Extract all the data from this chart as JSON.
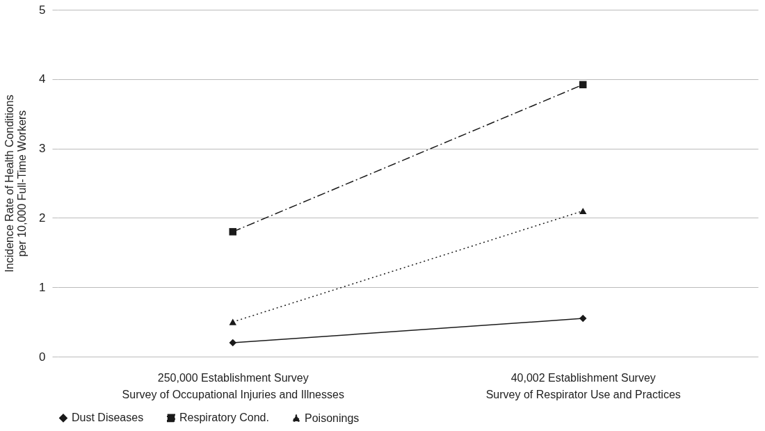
{
  "chart_data": {
    "type": "line",
    "ylabel": "Incidence Rate of Health Conditions\nper 10,000 Full-Time Workers",
    "categories": [
      "250,000 Establishment Survey\nSurvey of Occupational Injuries and Illnesses",
      "40,002 Establishment Survey\nSurvey of Respirator Use and Practices"
    ],
    "series": [
      {
        "name": "Dust Diseases",
        "color": "#1a1a1a",
        "values": [
          0.2,
          0.55
        ],
        "marker": "diamond",
        "line_style": "solid"
      },
      {
        "name": "Respiratory Cond.",
        "color": "#1a1a1a",
        "values": [
          1.8,
          3.92
        ],
        "marker": "square",
        "line_style": "dashdot"
      },
      {
        "name": "Poisonings",
        "color": "#1a1a1a",
        "values": [
          0.5,
          2.1
        ],
        "marker": "triangle",
        "line_style": "dotted"
      }
    ],
    "ylim": [
      0,
      5
    ],
    "yticks": [
      0,
      1,
      2,
      3,
      4,
      5
    ],
    "grid": "y",
    "legend": "bottom"
  }
}
